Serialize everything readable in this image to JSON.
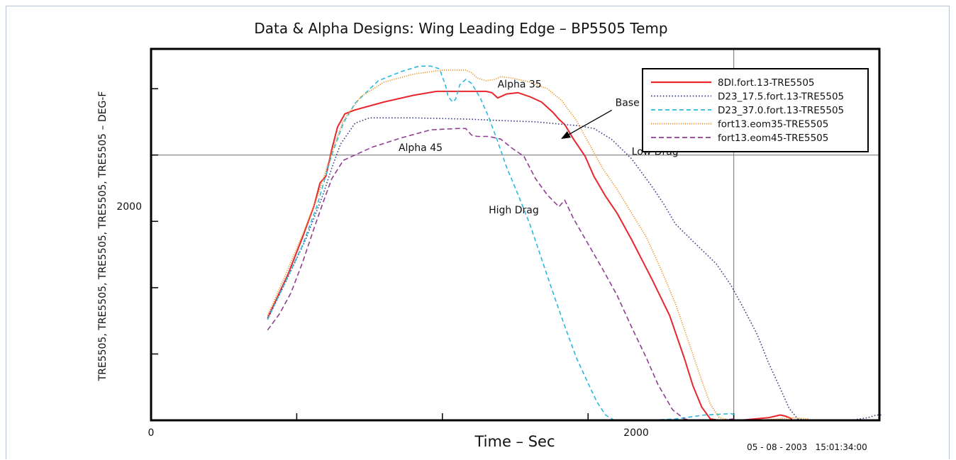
{
  "chart_data": {
    "type": "line",
    "title": "Data & Alpha Designs: Wing Leading Edge – BP5505 Temp",
    "xlabel": "Time – Sec",
    "ylabel": "TRE5505, TRE5505, TRE5505, TRE5505, TRE5505 – DEG-F",
    "xlim": [
      0,
      2500
    ],
    "ylim": [
      0,
      2800
    ],
    "x_tick_labels": [
      {
        "value": 0,
        "label": "0"
      },
      {
        "value": 2000,
        "label": "2000"
      }
    ],
    "y_tick_labels": [
      {
        "value": 2000,
        "label": "2000"
      }
    ],
    "grid": "reference lines at x=2000 and y=2000",
    "legend_position": "top-right",
    "timestamp": "05 - 08 - 2003   15:01:34:00",
    "annotations": [
      {
        "text": "Alpha 35",
        "x": 1265,
        "y": 2510
      },
      {
        "text": "Alpha 45",
        "x": 925,
        "y": 2030
      },
      {
        "text": "Base",
        "x": 1635,
        "y": 2370,
        "arrow_to": [
          1410,
          2125
        ]
      },
      {
        "text": "Low Drag",
        "x": 1730,
        "y": 2000
      },
      {
        "text": "High Drag",
        "x": 1245,
        "y": 1560
      }
    ],
    "series": [
      {
        "name": "8Dl.fort.13-TRE5505",
        "color": "#e8262c",
        "dash": "",
        "points": [
          [
            400,
            770
          ],
          [
            470,
            1100
          ],
          [
            520,
            1380
          ],
          [
            560,
            1620
          ],
          [
            580,
            1790
          ],
          [
            600,
            1840
          ],
          [
            620,
            2040
          ],
          [
            640,
            2210
          ],
          [
            665,
            2310
          ],
          [
            700,
            2340
          ],
          [
            800,
            2400
          ],
          [
            900,
            2450
          ],
          [
            980,
            2480
          ],
          [
            1060,
            2480
          ],
          [
            1150,
            2480
          ],
          [
            1170,
            2470
          ],
          [
            1190,
            2430
          ],
          [
            1220,
            2460
          ],
          [
            1260,
            2470
          ],
          [
            1300,
            2440
          ],
          [
            1340,
            2400
          ],
          [
            1380,
            2320
          ],
          [
            1400,
            2270
          ],
          [
            1420,
            2230
          ],
          [
            1450,
            2120
          ],
          [
            1490,
            1990
          ],
          [
            1520,
            1840
          ],
          [
            1560,
            1690
          ],
          [
            1600,
            1560
          ],
          [
            1650,
            1360
          ],
          [
            1720,
            1060
          ],
          [
            1780,
            790
          ],
          [
            1830,
            470
          ],
          [
            1860,
            260
          ],
          [
            1890,
            100
          ],
          [
            1920,
            10
          ],
          [
            1950,
            0
          ],
          [
            2020,
            0
          ],
          [
            2070,
            10
          ],
          [
            2120,
            20
          ],
          [
            2140,
            30
          ],
          [
            2160,
            40
          ],
          [
            2180,
            30
          ],
          [
            2200,
            10
          ]
        ]
      },
      {
        "name": "D23_17.5.fort.13-TRE5505",
        "color": "#3a3f8a",
        "dash": "1.6 2.6",
        "points": [
          [
            400,
            760
          ],
          [
            470,
            1080
          ],
          [
            530,
            1360
          ],
          [
            590,
            1700
          ],
          [
            620,
            1900
          ],
          [
            650,
            2080
          ],
          [
            700,
            2240
          ],
          [
            750,
            2280
          ],
          [
            900,
            2280
          ],
          [
            1100,
            2270
          ],
          [
            1200,
            2260
          ],
          [
            1320,
            2250
          ],
          [
            1420,
            2230
          ],
          [
            1470,
            2220
          ],
          [
            1520,
            2200
          ],
          [
            1580,
            2120
          ],
          [
            1650,
            1970
          ],
          [
            1720,
            1760
          ],
          [
            1760,
            1630
          ],
          [
            1800,
            1480
          ],
          [
            1860,
            1350
          ],
          [
            1940,
            1180
          ],
          [
            1990,
            1020
          ],
          [
            2030,
            860
          ],
          [
            2080,
            650
          ],
          [
            2120,
            430
          ],
          [
            2160,
            240
          ],
          [
            2190,
            90
          ],
          [
            2220,
            10
          ],
          [
            2260,
            0
          ],
          [
            2400,
            0
          ],
          [
            2460,
            20
          ],
          [
            2490,
            40
          ],
          [
            2510,
            40
          ]
        ]
      },
      {
        "name": "D23_37.0.fort.13-TRE5505",
        "color": "#29b9e0",
        "dash": "6 4",
        "points": [
          [
            400,
            760
          ],
          [
            460,
            1040
          ],
          [
            520,
            1320
          ],
          [
            570,
            1620
          ],
          [
            620,
            2000
          ],
          [
            660,
            2240
          ],
          [
            700,
            2390
          ],
          [
            780,
            2560
          ],
          [
            860,
            2630
          ],
          [
            920,
            2670
          ],
          [
            960,
            2670
          ],
          [
            990,
            2650
          ],
          [
            1010,
            2530
          ],
          [
            1020,
            2440
          ],
          [
            1035,
            2400
          ],
          [
            1045,
            2420
          ],
          [
            1060,
            2530
          ],
          [
            1080,
            2570
          ],
          [
            1100,
            2540
          ],
          [
            1130,
            2430
          ],
          [
            1160,
            2280
          ],
          [
            1190,
            2100
          ],
          [
            1220,
            1910
          ],
          [
            1260,
            1700
          ],
          [
            1300,
            1480
          ],
          [
            1340,
            1220
          ],
          [
            1380,
            960
          ],
          [
            1420,
            710
          ],
          [
            1460,
            470
          ],
          [
            1500,
            280
          ],
          [
            1530,
            140
          ],
          [
            1560,
            40
          ],
          [
            1590,
            0
          ],
          [
            1700,
            0
          ],
          [
            1800,
            10
          ],
          [
            1900,
            40
          ],
          [
            1990,
            50
          ],
          [
            2010,
            40
          ]
        ]
      },
      {
        "name": "fort13.eom35-TRE5505",
        "color": "#f08c1c",
        "dash": "1.2 1.8",
        "points": [
          [
            400,
            790
          ],
          [
            460,
            1090
          ],
          [
            520,
            1400
          ],
          [
            570,
            1680
          ],
          [
            620,
            2020
          ],
          [
            660,
            2260
          ],
          [
            720,
            2440
          ],
          [
            800,
            2550
          ],
          [
            900,
            2610
          ],
          [
            1000,
            2640
          ],
          [
            1080,
            2640
          ],
          [
            1100,
            2620
          ],
          [
            1120,
            2580
          ],
          [
            1150,
            2560
          ],
          [
            1180,
            2570
          ],
          [
            1200,
            2590
          ],
          [
            1240,
            2580
          ],
          [
            1300,
            2550
          ],
          [
            1360,
            2500
          ],
          [
            1410,
            2410
          ],
          [
            1460,
            2260
          ],
          [
            1500,
            2100
          ],
          [
            1550,
            1900
          ],
          [
            1600,
            1740
          ],
          [
            1650,
            1560
          ],
          [
            1700,
            1380
          ],
          [
            1750,
            1140
          ],
          [
            1800,
            880
          ],
          [
            1850,
            560
          ],
          [
            1890,
            300
          ],
          [
            1920,
            120
          ],
          [
            1950,
            20
          ],
          [
            1990,
            0
          ],
          [
            2090,
            0
          ],
          [
            2200,
            20
          ],
          [
            2260,
            10
          ]
        ]
      },
      {
        "name": "fort13.eom45-TRE5505",
        "color": "#8e3f92",
        "dash": "7 4",
        "points": [
          [
            400,
            680
          ],
          [
            440,
            800
          ],
          [
            480,
            960
          ],
          [
            520,
            1190
          ],
          [
            560,
            1450
          ],
          [
            590,
            1640
          ],
          [
            620,
            1820
          ],
          [
            660,
            1960
          ],
          [
            700,
            2000
          ],
          [
            760,
            2060
          ],
          [
            860,
            2130
          ],
          [
            960,
            2190
          ],
          [
            1050,
            2200
          ],
          [
            1080,
            2200
          ],
          [
            1100,
            2150
          ],
          [
            1120,
            2140
          ],
          [
            1160,
            2140
          ],
          [
            1200,
            2120
          ],
          [
            1240,
            2050
          ],
          [
            1280,
            1990
          ],
          [
            1320,
            1820
          ],
          [
            1360,
            1700
          ],
          [
            1400,
            1610
          ],
          [
            1420,
            1660
          ],
          [
            1450,
            1520
          ],
          [
            1500,
            1330
          ],
          [
            1550,
            1140
          ],
          [
            1600,
            940
          ],
          [
            1650,
            700
          ],
          [
            1700,
            470
          ],
          [
            1740,
            270
          ],
          [
            1790,
            80
          ],
          [
            1830,
            10
          ],
          [
            1860,
            0
          ],
          [
            1950,
            0
          ],
          [
            2000,
            10
          ]
        ]
      }
    ]
  }
}
